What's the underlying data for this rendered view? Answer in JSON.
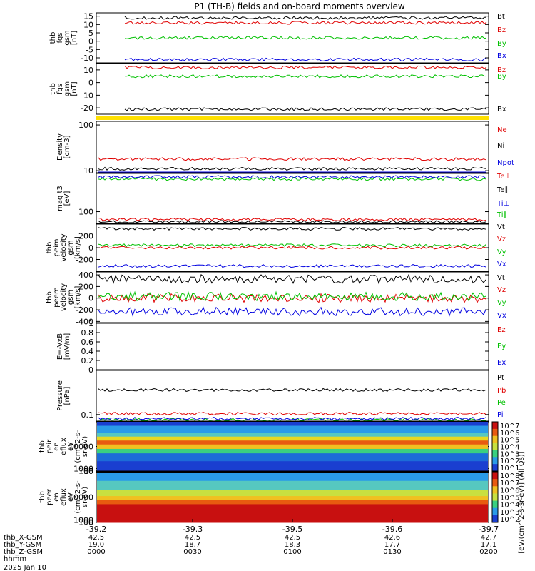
{
  "title": "P1 (TH-B) fields and on-board moments overview",
  "chart_data": [
    {
      "id": "p1",
      "type": "line",
      "ylabel": [
        "thb",
        "fgs",
        "gsm",
        "[nT]"
      ],
      "yticks": [
        15,
        10,
        5,
        0,
        -5,
        -10
      ],
      "ylim": [
        -13,
        17
      ],
      "series": [
        {
          "name": "Bt",
          "color": "#000000",
          "level": 14
        },
        {
          "name": "Bz",
          "color": "#e00000",
          "level": 11
        },
        {
          "name": "By",
          "color": "#00c000",
          "level": 2
        },
        {
          "name": "Bx",
          "color": "#0000e0",
          "level": -11
        }
      ]
    },
    {
      "id": "p2",
      "type": "line",
      "ylabel": [
        "thb",
        "fgs",
        "gsm",
        "[nT]"
      ],
      "yticks": [
        10,
        0,
        -10,
        -20
      ],
      "ylim": [
        -25,
        15
      ],
      "series": [
        {
          "name": "Bz",
          "color": "#e00000",
          "level": 12
        },
        {
          "name": "By",
          "color": "#00c000",
          "level": 5
        },
        {
          "name": "Bx",
          "color": "#000000",
          "level": -21
        }
      ]
    },
    {
      "id": "p3",
      "type": "line",
      "log": true,
      "ylabel": [
        "Density",
        "[cm-3]"
      ],
      "yticks": [
        100,
        10
      ],
      "ylim": [
        9,
        120
      ],
      "series": [
        {
          "name": "Ne",
          "color": "#e00000",
          "level": 18
        },
        {
          "name": "Ni",
          "color": "#000000",
          "level": 11
        },
        {
          "name": "Npot",
          "color": "#0000e0",
          "level": 8
        }
      ]
    },
    {
      "id": "p4",
      "type": "line",
      "log": true,
      "ylabel": [
        "mag t3",
        "[eV]"
      ],
      "yticks": [
        100
      ],
      "ylim": [
        30,
        5000
      ],
      "series": [
        {
          "name": "Te⊥",
          "color": "#e00000",
          "level": 45
        },
        {
          "name": "Te∥",
          "color": "#000000",
          "level": 35
        },
        {
          "name": "Ti⊥",
          "color": "#0000e0",
          "level": 3500
        },
        {
          "name": "Ti∥",
          "color": "#00c000",
          "level": 2800
        }
      ]
    },
    {
      "id": "p5",
      "type": "line",
      "ylabel": [
        "thb",
        "peim",
        "velocity",
        "gsm",
        "[km/s]"
      ],
      "yticks": [
        200,
        0,
        -200
      ],
      "ylim": [
        -400,
        400
      ],
      "series": [
        {
          "name": "Vt",
          "color": "#000000",
          "level": 320
        },
        {
          "name": "Vz",
          "color": "#e00000",
          "level": 0
        },
        {
          "name": "Vy",
          "color": "#00c000",
          "level": 40
        },
        {
          "name": "Vx",
          "color": "#0000e0",
          "level": -310
        }
      ]
    },
    {
      "id": "p6",
      "type": "line",
      "ylabel": [
        "thb",
        "peem",
        "velocity",
        "gsm",
        "[km/s]"
      ],
      "yticks": [
        400,
        200,
        0,
        -200,
        -400
      ],
      "ylim": [
        -420,
        450
      ],
      "series": [
        {
          "name": "Vt",
          "color": "#000000",
          "level": 330
        },
        {
          "name": "Vz",
          "color": "#e00000",
          "level": 0
        },
        {
          "name": "Vy",
          "color": "#00c000",
          "level": 30
        },
        {
          "name": "Vx",
          "color": "#0000e0",
          "level": -230
        }
      ]
    },
    {
      "id": "p7",
      "type": "line",
      "ylabel": [
        "E=-VxB",
        "[mV/m]"
      ],
      "yticks": [
        1.0,
        0.8,
        0.6,
        0.4,
        0.2,
        0.0
      ],
      "ylim": [
        0,
        1
      ],
      "series": [
        {
          "name": "Ez",
          "color": "#e00000"
        },
        {
          "name": "Ey",
          "color": "#00c000"
        },
        {
          "name": "Ex",
          "color": "#0000e0"
        }
      ]
    },
    {
      "id": "p8",
      "type": "line",
      "log": true,
      "ylabel": [
        "Pressure",
        "[nPa]"
      ],
      "yticks": [
        0.1
      ],
      "ylim": [
        0.07,
        1.1
      ],
      "series": [
        {
          "name": "Pt",
          "color": "#000000",
          "level": 0.38
        },
        {
          "name": "Pb",
          "color": "#e00000",
          "level": 0.105
        },
        {
          "name": "Pe",
          "color": "#00c000",
          "level": 0.075
        },
        {
          "name": "Pi",
          "color": "#0000e0",
          "level": 0.08
        }
      ]
    },
    {
      "id": "p9",
      "type": "heatmap",
      "ylabel": [
        "thb",
        "peir",
        "en",
        "eflux",
        "eV",
        "(cm^2-s-",
        "sr-eV)"
      ],
      "yticks": [
        10000,
        1000,
        100,
        10
      ],
      "ylim": [
        5,
        20000
      ]
    },
    {
      "id": "p10",
      "type": "heatmap",
      "ylabel": [
        "thb",
        "peer",
        "en",
        "eflux",
        "eV",
        "(cm^2-s-",
        "sr-eV)"
      ],
      "yticks": [
        10000,
        1000,
        100,
        10
      ],
      "ylim": [
        5,
        20000
      ]
    }
  ],
  "colorbar1": {
    "ticks": [
      "10^7",
      "10^6",
      "10^5",
      "10^4",
      "10^3",
      "10^2",
      "10^1"
    ]
  },
  "colorbar2": {
    "ticks": [
      "10^8",
      "10^7",
      "10^6",
      "10^5",
      "10^4",
      "10^3",
      "10^2"
    ]
  },
  "colorbar_label": "[eV/(cm^2-s-sr-eV)] (All Qs)]",
  "x_axis": {
    "ticks": [
      "-39.2",
      "-39.3",
      "-39.5",
      "-39.6",
      "-39.7"
    ],
    "rows": [
      {
        "label": "thb_X-GSM",
        "values": [
          "42.5",
          "42.5",
          "42.5",
          "42.6",
          "42.7"
        ]
      },
      {
        "label": "thb_Y-GSM",
        "values": [
          "19.0",
          "18.7",
          "18.3",
          "17.7",
          "17.1"
        ]
      },
      {
        "label": "thb_Z-GSM",
        "values": [
          "0000",
          "0030",
          "0100",
          "0130",
          "0200"
        ]
      },
      {
        "label": "hhmm",
        "values": [
          "",
          "",
          "",
          "",
          ""
        ]
      }
    ],
    "date": "2025 Jan 10"
  }
}
